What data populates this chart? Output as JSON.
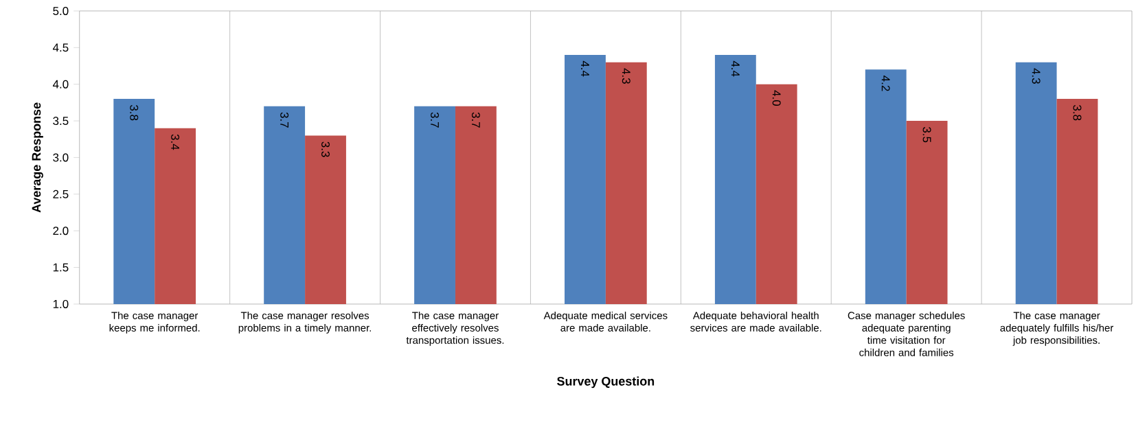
{
  "chart_data": {
    "type": "bar",
    "xlabel": "Survey Question",
    "ylabel": "Average Response",
    "categories": [
      "The case manager keeps me informed.",
      "The case manager resolves problems in a timely manner.",
      "The case manager effectively resolves transportation issues.",
      "Adequate medical services are made available.",
      "Adequate behavioral health services are made available.",
      "Case manager schedules adequate parenting time visitation for children and families",
      "The case manager adequately fulfills his/her job responsibilities."
    ],
    "series": [
      {
        "color": "#4f81bd",
        "values": [
          3.8,
          3.7,
          3.7,
          4.4,
          4.4,
          4.2,
          4.3
        ],
        "value_labels": [
          "3.8",
          "3.7",
          "3.7",
          "4.4",
          "4.4",
          "4.2",
          "4.3"
        ]
      },
      {
        "color": "#c0504d",
        "values": [
          3.4,
          3.3,
          3.7,
          4.3,
          4.0,
          3.5,
          3.8
        ],
        "value_labels": [
          "3.4",
          "3.3",
          "3.7",
          "4.3",
          "4.0",
          "3.5",
          "3.8"
        ]
      }
    ],
    "ylim": [
      1.0,
      5.0
    ],
    "yticks": [
      {
        "value": 1.0,
        "label": "1.0"
      },
      {
        "value": 1.5,
        "label": "1.5"
      },
      {
        "value": 2.0,
        "label": "2.0"
      },
      {
        "value": 2.5,
        "label": "2.5"
      },
      {
        "value": 3.0,
        "label": "3.0"
      },
      {
        "value": 3.5,
        "label": "3.5"
      },
      {
        "value": 4.0,
        "label": "4.0"
      },
      {
        "value": 4.5,
        "label": "4.5"
      },
      {
        "value": 5.0,
        "label": "5.0"
      }
    ],
    "grid": "x"
  }
}
